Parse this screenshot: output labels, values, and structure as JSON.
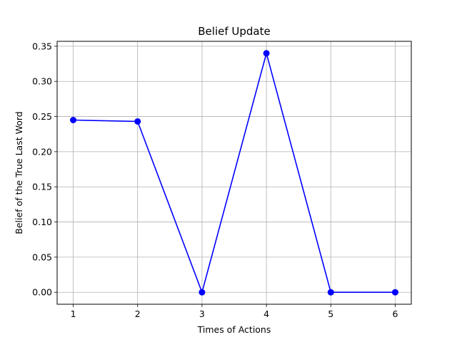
{
  "chart_data": {
    "type": "line",
    "title": "Belief Update",
    "xlabel": "Times of Actions",
    "ylabel": "Belief of the True Last Word",
    "x": [
      1,
      2,
      3,
      4,
      5,
      6
    ],
    "series": [
      {
        "values": [
          0.245,
          0.243,
          0.0,
          0.34,
          0.0,
          0.0
        ],
        "color": "#0000ff",
        "marker": "circle"
      }
    ],
    "xlim": [
      0.75,
      6.25
    ],
    "ylim": [
      -0.017,
      0.357
    ],
    "xticks": [
      "1",
      "2",
      "3",
      "4",
      "5",
      "6"
    ],
    "yticks": [
      "0.00",
      "0.05",
      "0.10",
      "0.15",
      "0.20",
      "0.25",
      "0.30",
      "0.35"
    ],
    "grid": true,
    "grid_color": "#b0b0b0"
  }
}
